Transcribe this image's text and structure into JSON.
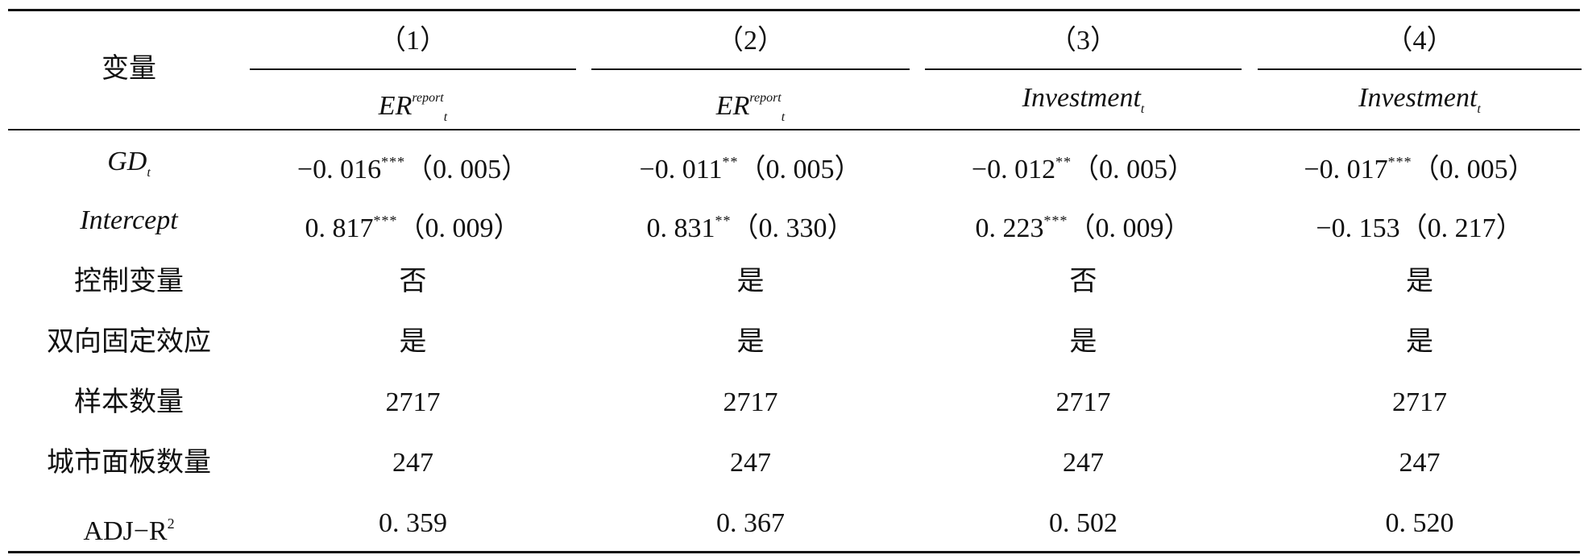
{
  "table": {
    "header": {
      "variable_label": "变量",
      "columns": [
        {
          "number": "（1）",
          "dep_main": "ER",
          "dep_sup": "report",
          "dep_sub": "t"
        },
        {
          "number": "（2）",
          "dep_main": "ER",
          "dep_sup": "report",
          "dep_sub": "t"
        },
        {
          "number": "（3）",
          "dep_main": "Investment",
          "dep_sup": "",
          "dep_sub": "t"
        },
        {
          "number": "（4）",
          "dep_main": "Investment",
          "dep_sup": "",
          "dep_sub": "t"
        }
      ]
    },
    "rows": {
      "gd": {
        "label_main": "GD",
        "label_sub": "t",
        "cells": [
          {
            "coef": "−0. 016",
            "stars": "***",
            "se": "（0. 005）"
          },
          {
            "coef": "−0. 011",
            "stars": "**",
            "se": "（0. 005）"
          },
          {
            "coef": "−0. 012",
            "stars": "**",
            "se": "（0. 005）"
          },
          {
            "coef": "−0. 017",
            "stars": "***",
            "se": "（0. 005）"
          }
        ]
      },
      "intercept": {
        "label": "Intercept",
        "cells": [
          {
            "coef": "0. 817",
            "stars": "***",
            "se": "（0. 009）"
          },
          {
            "coef": "0. 831",
            "stars": "**",
            "se": "（0. 330）"
          },
          {
            "coef": "0. 223",
            "stars": "***",
            "se": "（0. 009）"
          },
          {
            "coef": "−0. 153",
            "stars": "",
            "se": "（0. 217）"
          }
        ]
      },
      "controls": {
        "label": "控制变量",
        "values": [
          "否",
          "是",
          "否",
          "是"
        ]
      },
      "fixed_effects": {
        "label": "双向固定效应",
        "values": [
          "是",
          "是",
          "是",
          "是"
        ]
      },
      "sample": {
        "label": "样本数量",
        "values": [
          "2717",
          "2717",
          "2717",
          "2717"
        ]
      },
      "panels": {
        "label": "城市面板数量",
        "values": [
          "247",
          "247",
          "247",
          "247"
        ]
      },
      "adj_r2": {
        "label_main": "ADJ−R",
        "label_sup": "2",
        "values": [
          "0. 359",
          "0. 367",
          "0. 502",
          "0. 520"
        ]
      }
    }
  }
}
